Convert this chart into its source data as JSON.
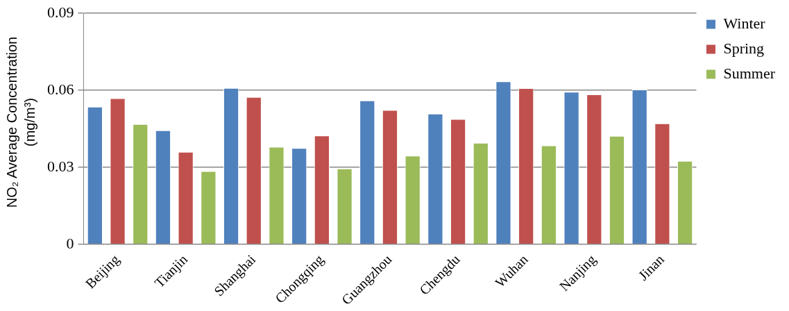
{
  "chart_data": {
    "type": "bar",
    "ylabel": "NO₂ Average Concentration (mg/m³)",
    "categories": [
      "Beijing",
      "Tianjin",
      "Shanghai",
      "Chongqing",
      "Guangzhou",
      "Chengdu",
      "Wuhan",
      "Nanjing",
      "Jinan"
    ],
    "series": [
      {
        "name": "Winter",
        "color": "#4f81bd",
        "values": [
          0.0536,
          0.0444,
          0.0609,
          0.0375,
          0.056,
          0.0509,
          0.0635,
          0.0594,
          0.0603
        ]
      },
      {
        "name": "Spring",
        "color": "#c0504d",
        "values": [
          0.0569,
          0.036,
          0.0574,
          0.0424,
          0.0523,
          0.0488,
          0.0608,
          0.0584,
          0.0471
        ]
      },
      {
        "name": "Summer",
        "color": "#9bbb59",
        "values": [
          0.0468,
          0.0285,
          0.038,
          0.0295,
          0.0345,
          0.0395,
          0.0385,
          0.0422,
          0.0325
        ]
      }
    ],
    "ylim": [
      0,
      0.09
    ],
    "yticks": [
      {
        "value": 0,
        "label": "0"
      },
      0.03,
      0.06,
      0.09
    ],
    "grid": "y",
    "legend": "right"
  }
}
